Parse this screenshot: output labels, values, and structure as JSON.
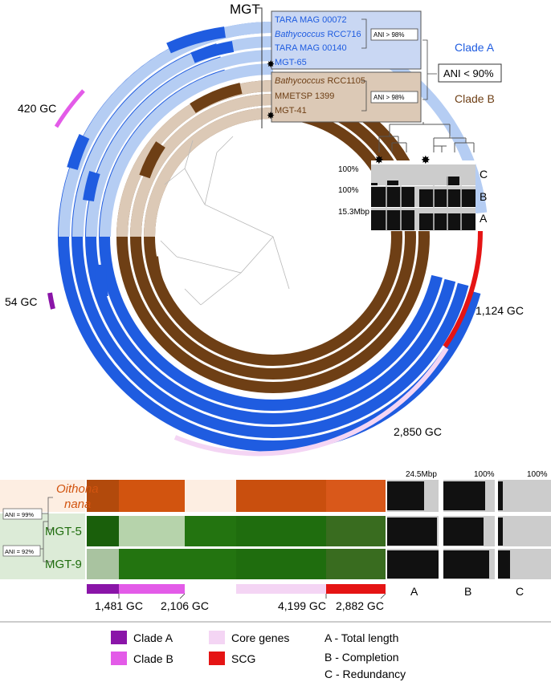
{
  "top": {
    "mgt_label": "MGT",
    "clade_a_names": [
      "TARA MAG 00072",
      "RCC716",
      "TARA MAG 00140",
      "MGT-65"
    ],
    "clade_a_italic_prefix": "Bathycoccus",
    "clade_b_names": [
      "RCC1105",
      "MMETSP 1399",
      "MGT-41"
    ],
    "clade_b_italic_prefix": "Bathycoccus",
    "ani_a": "ANI > 98%",
    "ani_b": "ANI > 98%",
    "ani_ab": "ANI < 90%",
    "clade_a_label": "Clade A",
    "clade_b_label": "Clade B",
    "gc_420": "420 GC",
    "gc_54": "54 GC",
    "gc_1124": "1,124 GC",
    "gc_2850": "2,850 GC",
    "bar_pct_c": "100%",
    "bar_pct_b": "100%",
    "bar_len_a": "15.3Mbp",
    "bar_row_c": "C",
    "bar_row_b": "B",
    "bar_row_a": "A",
    "star": "✸"
  },
  "bottom": {
    "species_line1": "Oithona",
    "species_line2": "nana",
    "mgt5": "MGT-5",
    "mgt9": "MGT-9",
    "ani_99": "ANI = 99%",
    "ani_92": "ANI = 92%",
    "head_a": "24.5Mbp",
    "head_b": "100%",
    "head_c": "100%",
    "col_a": "A",
    "col_b": "B",
    "col_c": "C",
    "gc1": "1,481 GC",
    "gc2": "2,106 GC",
    "gc3": "4,199 GC",
    "gc4": "2,882 GC"
  },
  "legend": {
    "clade_a": "Clade A",
    "clade_b": "Clade B",
    "core": "Core genes",
    "scg": "SCG",
    "a": "A - Total length",
    "b": "B - Completion",
    "c": "C - Redundancy"
  },
  "colors": {
    "blue": "#1f5ce0",
    "light_blue": "#b5cdf3",
    "brown": "#6e3f15",
    "tan": "#dcc9b6",
    "orange": "#d2540f",
    "peach": "#fdeee2",
    "green": "#1f6d0e",
    "light_green": "#b6d3ab",
    "clade_a": "#8a15a8",
    "clade_b": "#e35be8",
    "core": "#f4d5f4",
    "scg": "#e51414"
  }
}
